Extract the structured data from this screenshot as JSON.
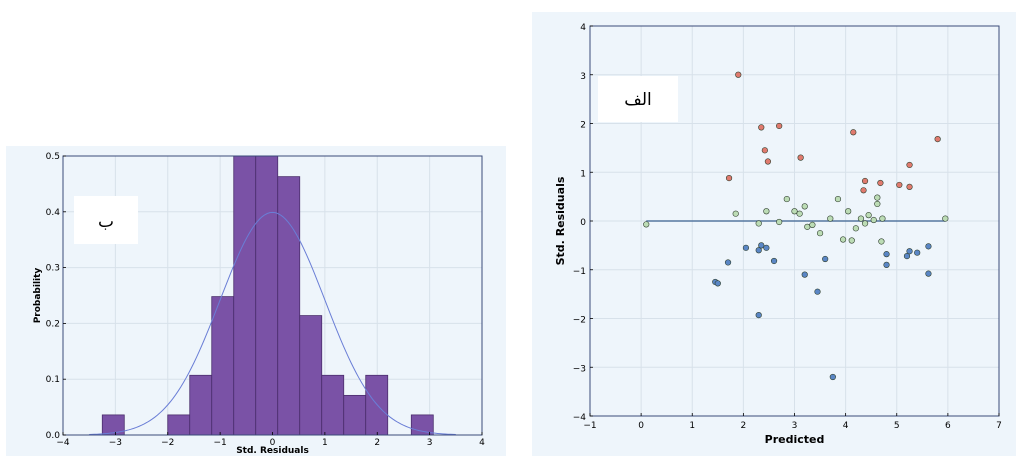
{
  "panels": {
    "b": {
      "label": "ب",
      "chart_data": {
        "type": "bar",
        "subtype": "histogram with fitted normal curve",
        "xlabel": "Std. Residuals",
        "ylabel": "Probability",
        "xlim": [
          -4,
          4
        ],
        "ylim": [
          0,
          0.5
        ],
        "xticks": [
          -4,
          -3,
          -2,
          -1,
          0,
          1,
          2,
          3,
          4
        ],
        "xtick_labels": [
          "−4",
          "−3",
          "−2",
          "−1",
          "0",
          "1",
          "2",
          "3",
          "4"
        ],
        "yticks": [
          0,
          0.1,
          0.2,
          0.3,
          0.4,
          0.5
        ],
        "ytick_labels": [
          "0.0",
          "0.1",
          "0.2",
          "0.3",
          "0.4",
          "0.5"
        ],
        "bins": [
          {
            "x0": -3.25,
            "x1": -2.83,
            "value": 0.036
          },
          {
            "x0": -2.0,
            "x1": -1.58,
            "value": 0.036
          },
          {
            "x0": -1.58,
            "x1": -1.16,
            "value": 0.107
          },
          {
            "x0": -1.16,
            "x1": -0.74,
            "value": 0.248
          },
          {
            "x0": -0.74,
            "x1": -0.32,
            "value": 0.5
          },
          {
            "x0": -0.32,
            "x1": 0.1,
            "value": 0.5
          },
          {
            "x0": 0.1,
            "x1": 0.52,
            "value": 0.463
          },
          {
            "x0": 0.52,
            "x1": 0.94,
            "value": 0.214
          },
          {
            "x0": 0.94,
            "x1": 1.36,
            "value": 0.107
          },
          {
            "x0": 1.36,
            "x1": 1.78,
            "value": 0.071
          },
          {
            "x0": 1.78,
            "x1": 2.2,
            "value": 0.107
          },
          {
            "x0": 2.65,
            "x1": 3.07,
            "value": 0.036
          }
        ],
        "curve": {
          "type": "normal_pdf",
          "mean": 0,
          "sd": 1,
          "xrange": [
            -3.5,
            3.5
          ]
        },
        "grid": true,
        "colors": {
          "bar": "#7a52a6",
          "bar_edge": "#4a2d6c",
          "curve": "#6a7ed6",
          "background": "#eef5fb"
        }
      }
    },
    "a": {
      "label": "الف",
      "chart_data": {
        "type": "scatter",
        "xlabel": "Predicted",
        "ylabel": "Std. Residuals",
        "xlim": [
          -1,
          7
        ],
        "ylim": [
          -4,
          4
        ],
        "xticks": [
          -1,
          0,
          1,
          2,
          3,
          4,
          5,
          6,
          7
        ],
        "xtick_labels": [
          "−1",
          "0",
          "1",
          "2",
          "3",
          "4",
          "5",
          "6",
          "7"
        ],
        "yticks": [
          -4,
          -3,
          -2,
          -1,
          0,
          1,
          2,
          3,
          4
        ],
        "ytick_labels": [
          "−4",
          "−3",
          "−2",
          "−1",
          "0",
          "1",
          "2",
          "3",
          "4"
        ],
        "reference_line": {
          "y": 0,
          "x0": 0.1,
          "x1": 5.95
        },
        "grid": true,
        "colors": {
          "red": "#e07a6e",
          "green": "#bcdcb5",
          "blue": "#5a86c5",
          "line": "#5577a0",
          "background": "#eef5fb"
        },
        "points": [
          {
            "x": 1.9,
            "y": 3.0,
            "c": "red"
          },
          {
            "x": 2.35,
            "y": 1.92,
            "c": "red"
          },
          {
            "x": 2.7,
            "y": 1.95,
            "c": "red"
          },
          {
            "x": 4.15,
            "y": 1.82,
            "c": "red"
          },
          {
            "x": 5.8,
            "y": 1.68,
            "c": "red"
          },
          {
            "x": 2.42,
            "y": 1.45,
            "c": "red"
          },
          {
            "x": 2.48,
            "y": 1.22,
            "c": "red"
          },
          {
            "x": 3.12,
            "y": 1.3,
            "c": "red"
          },
          {
            "x": 5.25,
            "y": 1.15,
            "c": "red"
          },
          {
            "x": 1.72,
            "y": 0.88,
            "c": "red"
          },
          {
            "x": 4.38,
            "y": 0.82,
            "c": "red"
          },
          {
            "x": 4.68,
            "y": 0.78,
            "c": "red"
          },
          {
            "x": 5.05,
            "y": 0.74,
            "c": "red"
          },
          {
            "x": 5.25,
            "y": 0.7,
            "c": "red"
          },
          {
            "x": 4.35,
            "y": 0.63,
            "c": "red"
          },
          {
            "x": 0.1,
            "y": -0.07,
            "c": "green"
          },
          {
            "x": 1.85,
            "y": 0.15,
            "c": "green"
          },
          {
            "x": 2.3,
            "y": -0.05,
            "c": "green"
          },
          {
            "x": 2.45,
            "y": 0.2,
            "c": "green"
          },
          {
            "x": 2.7,
            "y": -0.02,
            "c": "green"
          },
          {
            "x": 2.85,
            "y": 0.45,
            "c": "green"
          },
          {
            "x": 3.0,
            "y": 0.2,
            "c": "green"
          },
          {
            "x": 3.1,
            "y": 0.15,
            "c": "green"
          },
          {
            "x": 3.2,
            "y": 0.3,
            "c": "green"
          },
          {
            "x": 3.25,
            "y": -0.12,
            "c": "green"
          },
          {
            "x": 3.35,
            "y": -0.08,
            "c": "green"
          },
          {
            "x": 3.5,
            "y": -0.25,
            "c": "green"
          },
          {
            "x": 3.7,
            "y": 0.05,
            "c": "green"
          },
          {
            "x": 3.85,
            "y": 0.45,
            "c": "green"
          },
          {
            "x": 3.95,
            "y": -0.38,
            "c": "green"
          },
          {
            "x": 4.05,
            "y": 0.2,
            "c": "green"
          },
          {
            "x": 4.12,
            "y": -0.4,
            "c": "green"
          },
          {
            "x": 4.2,
            "y": -0.15,
            "c": "green"
          },
          {
            "x": 4.3,
            "y": 0.05,
            "c": "green"
          },
          {
            "x": 4.38,
            "y": -0.05,
            "c": "green"
          },
          {
            "x": 4.45,
            "y": 0.12,
            "c": "green"
          },
          {
            "x": 4.55,
            "y": 0.02,
            "c": "green"
          },
          {
            "x": 4.62,
            "y": 0.35,
            "c": "green"
          },
          {
            "x": 4.62,
            "y": 0.48,
            "c": "green"
          },
          {
            "x": 4.72,
            "y": 0.05,
            "c": "green"
          },
          {
            "x": 4.7,
            "y": -0.42,
            "c": "green"
          },
          {
            "x": 5.95,
            "y": 0.05,
            "c": "green"
          },
          {
            "x": 1.45,
            "y": -1.25,
            "c": "blue"
          },
          {
            "x": 1.5,
            "y": -1.28,
            "c": "blue"
          },
          {
            "x": 1.7,
            "y": -0.85,
            "c": "blue"
          },
          {
            "x": 2.05,
            "y": -0.55,
            "c": "blue"
          },
          {
            "x": 2.3,
            "y": -0.6,
            "c": "blue"
          },
          {
            "x": 2.35,
            "y": -0.5,
            "c": "blue"
          },
          {
            "x": 2.45,
            "y": -0.55,
            "c": "blue"
          },
          {
            "x": 2.6,
            "y": -0.82,
            "c": "blue"
          },
          {
            "x": 2.3,
            "y": -1.93,
            "c": "blue"
          },
          {
            "x": 3.2,
            "y": -1.1,
            "c": "blue"
          },
          {
            "x": 3.45,
            "y": -1.45,
            "c": "blue"
          },
          {
            "x": 3.6,
            "y": -0.78,
            "c": "blue"
          },
          {
            "x": 3.75,
            "y": -3.2,
            "c": "blue"
          },
          {
            "x": 4.8,
            "y": -0.68,
            "c": "blue"
          },
          {
            "x": 4.8,
            "y": -0.9,
            "c": "blue"
          },
          {
            "x": 5.2,
            "y": -0.72,
            "c": "blue"
          },
          {
            "x": 5.25,
            "y": -0.62,
            "c": "blue"
          },
          {
            "x": 5.4,
            "y": -0.65,
            "c": "blue"
          },
          {
            "x": 5.62,
            "y": -0.52,
            "c": "blue"
          },
          {
            "x": 5.62,
            "y": -1.08,
            "c": "blue"
          }
        ]
      }
    }
  }
}
